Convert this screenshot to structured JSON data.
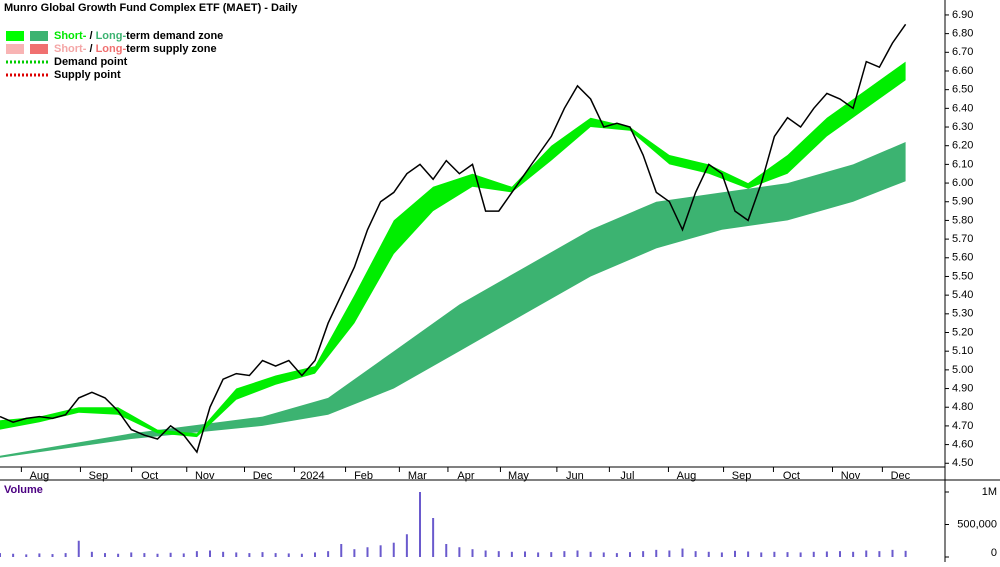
{
  "chart_data": {
    "type": "line",
    "title": "Munro Global Growth Fund Complex ETF (MAET) - Daily",
    "legend": [
      {
        "parts": [
          "Short-",
          " / ",
          "Long-",
          "term demand zone"
        ],
        "colors": [
          "#00e800",
          "#000000",
          "#3cb371",
          "#000000"
        ],
        "swatches": [
          "#00ff00",
          "#3cb371"
        ],
        "style": "box"
      },
      {
        "parts": [
          "Short-",
          " / ",
          "Long-",
          "term supply zone"
        ],
        "colors": [
          "#f4a6a6",
          "#000000",
          "#f07070",
          "#000000"
        ],
        "swatches": [
          "#f8b4b4",
          "#f07070"
        ],
        "style": "box"
      },
      {
        "parts": [
          "Demand point"
        ],
        "colors": [
          "#000000"
        ],
        "swatches": [
          "#00cc00"
        ],
        "style": "dots"
      },
      {
        "parts": [
          "Supply point"
        ],
        "colors": [
          "#000000"
        ],
        "swatches": [
          "#dd0000"
        ],
        "style": "dots"
      }
    ],
    "xlim": [
      0,
      72
    ],
    "xticks": [
      {
        "value": 3.0,
        "label": "Aug"
      },
      {
        "value": 7.5,
        "label": "Sep"
      },
      {
        "value": 11.4,
        "label": "Oct"
      },
      {
        "value": 15.6,
        "label": "Nov"
      },
      {
        "value": 20.0,
        "label": "Dec"
      },
      {
        "value": 23.8,
        "label": "2024"
      },
      {
        "value": 27.7,
        "label": "Feb"
      },
      {
        "value": 31.8,
        "label": "Mar"
      },
      {
        "value": 35.5,
        "label": "Apr"
      },
      {
        "value": 39.5,
        "label": "May"
      },
      {
        "value": 43.8,
        "label": "Jun"
      },
      {
        "value": 47.8,
        "label": "Jul"
      },
      {
        "value": 52.3,
        "label": "Aug"
      },
      {
        "value": 56.5,
        "label": "Sep"
      },
      {
        "value": 60.3,
        "label": "Oct"
      },
      {
        "value": 64.8,
        "label": "Nov"
      },
      {
        "value": 68.6,
        "label": "Dec"
      }
    ],
    "ylim": [
      4.48,
      6.98
    ],
    "yticks": [
      {
        "value": 4.5,
        "label": "4.50"
      },
      {
        "value": 4.6,
        "label": "4.60"
      },
      {
        "value": 4.7,
        "label": "4.70"
      },
      {
        "value": 4.8,
        "label": "4.80"
      },
      {
        "value": 4.9,
        "label": "4.90"
      },
      {
        "value": 5.0,
        "label": "5.00"
      },
      {
        "value": 5.1,
        "label": "5.10"
      },
      {
        "value": 5.2,
        "label": "5.20"
      },
      {
        "value": 5.3,
        "label": "5.30"
      },
      {
        "value": 5.4,
        "label": "5.40"
      },
      {
        "value": 5.5,
        "label": "5.50"
      },
      {
        "value": 5.6,
        "label": "5.60"
      },
      {
        "value": 5.7,
        "label": "5.70"
      },
      {
        "value": 5.8,
        "label": "5.80"
      },
      {
        "value": 5.9,
        "label": "5.90"
      },
      {
        "value": 6.0,
        "label": "6.00"
      },
      {
        "value": 6.1,
        "label": "6.10"
      },
      {
        "value": 6.2,
        "label": "6.20"
      },
      {
        "value": 6.3,
        "label": "6.30"
      },
      {
        "value": 6.4,
        "label": "6.40"
      },
      {
        "value": 6.5,
        "label": "6.50"
      },
      {
        "value": 6.6,
        "label": "6.60"
      },
      {
        "value": 6.7,
        "label": "6.70"
      },
      {
        "value": 6.8,
        "label": "6.80"
      },
      {
        "value": 6.9,
        "label": "6.90"
      }
    ],
    "price": {
      "color": "#000000",
      "x": [
        0,
        1,
        2,
        3,
        4,
        5,
        6,
        7,
        8,
        9,
        10,
        11,
        12,
        13,
        14,
        15,
        16,
        17,
        18,
        19,
        20,
        21,
        22,
        23,
        24,
        25,
        26,
        27,
        28,
        29,
        30,
        31,
        32,
        33,
        34,
        35,
        36,
        37,
        38,
        39,
        40,
        41,
        42,
        43,
        44,
        45,
        46,
        47,
        48,
        49,
        50,
        51,
        52,
        53,
        54,
        55,
        56,
        57,
        58,
        59,
        60,
        61,
        62,
        63,
        64,
        65,
        66,
        67,
        68,
        69
      ],
      "values": [
        4.75,
        4.72,
        4.74,
        4.75,
        4.74,
        4.76,
        4.85,
        4.88,
        4.85,
        4.78,
        4.68,
        4.65,
        4.63,
        4.7,
        4.65,
        4.56,
        4.8,
        4.95,
        4.98,
        4.97,
        5.05,
        5.02,
        5.05,
        4.97,
        5.05,
        5.25,
        5.4,
        5.55,
        5.75,
        5.9,
        5.95,
        6.05,
        6.1,
        6.02,
        6.12,
        6.05,
        6.1,
        5.85,
        5.85,
        5.95,
        6.05,
        6.15,
        6.25,
        6.4,
        6.52,
        6.45,
        6.3,
        6.32,
        6.3,
        6.15,
        5.95,
        5.9,
        5.75,
        5.95,
        6.1,
        6.05,
        5.85,
        5.8,
        6.0,
        6.25,
        6.35,
        6.3,
        6.4,
        6.48,
        6.45,
        6.4,
        6.65,
        6.62,
        6.75,
        6.85
      ]
    },
    "short_zone": {
      "color": "#00ee00",
      "x": [
        0,
        3,
        6,
        9,
        12,
        15,
        18,
        21,
        24,
        27,
        30,
        33,
        36,
        39,
        42,
        45,
        48,
        51,
        54,
        57,
        60,
        63,
        66,
        69
      ],
      "upper": [
        4.73,
        4.75,
        4.8,
        4.8,
        4.68,
        4.66,
        4.9,
        4.97,
        5.02,
        5.4,
        5.8,
        5.98,
        6.05,
        5.98,
        6.2,
        6.35,
        6.3,
        6.15,
        6.1,
        6.0,
        6.15,
        6.35,
        6.5,
        6.65
      ],
      "lower": [
        4.68,
        4.72,
        4.77,
        4.76,
        4.66,
        4.64,
        4.84,
        4.92,
        4.98,
        5.25,
        5.62,
        5.85,
        5.98,
        5.95,
        6.12,
        6.3,
        6.28,
        6.1,
        6.05,
        5.97,
        6.05,
        6.25,
        6.4,
        6.55
      ]
    },
    "long_zone": {
      "color": "#3cb371",
      "x": [
        0,
        10,
        20,
        25,
        30,
        35,
        40,
        45,
        50,
        55,
        60,
        65,
        69
      ],
      "upper": [
        4.54,
        4.66,
        4.75,
        4.85,
        5.1,
        5.35,
        5.55,
        5.75,
        5.9,
        5.95,
        6.0,
        6.1,
        6.22
      ],
      "lower": [
        4.53,
        4.63,
        4.7,
        4.76,
        4.9,
        5.1,
        5.3,
        5.5,
        5.65,
        5.75,
        5.8,
        5.9,
        6.01
      ]
    },
    "volume": {
      "label": "Volume",
      "color": "#6a5acd",
      "values": [
        60000,
        50000,
        40000,
        55000,
        45000,
        60000,
        250000,
        80000,
        60000,
        50000,
        70000,
        60000,
        50000,
        65000,
        55000,
        90000,
        100000,
        80000,
        70000,
        60000,
        75000,
        60000,
        55000,
        50000,
        70000,
        90000,
        200000,
        120000,
        150000,
        180000,
        220000,
        350000,
        1000000,
        600000,
        200000,
        150000,
        120000,
        100000,
        90000,
        80000,
        85000,
        70000,
        75000,
        90000,
        100000,
        80000,
        70000,
        60000,
        75000,
        90000,
        110000,
        100000,
        130000,
        90000,
        80000,
        70000,
        95000,
        85000,
        70000,
        80000,
        75000,
        70000,
        80000,
        85000,
        90000,
        80000,
        100000,
        90000,
        110000,
        95000
      ],
      "ylim": [
        0,
        1100000
      ],
      "yticks": [
        0,
        {
          "value": 500000,
          "label": "500,000"
        },
        {
          "value": 1000000,
          "label": "1M"
        }
      ]
    }
  }
}
